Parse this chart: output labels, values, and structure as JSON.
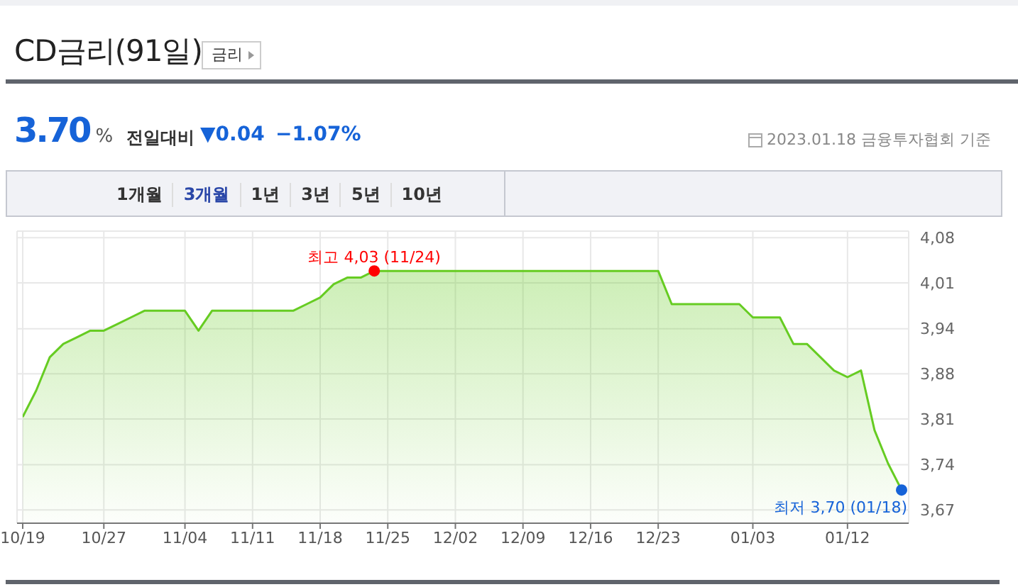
{
  "chart_data": {
    "type": "area",
    "title": "CD금리(91일)",
    "subtitle": "3.70%",
    "categories": [
      "10/19",
      null,
      null,
      null,
      null,
      null,
      "10/27",
      null,
      null,
      null,
      null,
      null,
      "11/04",
      null,
      null,
      null,
      null,
      "11/11",
      null,
      null,
      null,
      null,
      "11/18",
      null,
      null,
      null,
      null,
      "11/25",
      null,
      null,
      null,
      null,
      "12/02",
      null,
      null,
      null,
      null,
      "12/09",
      null,
      null,
      null,
      null,
      "12/16",
      null,
      null,
      null,
      null,
      "12/23",
      null,
      null,
      null,
      null,
      null,
      null,
      "01/03",
      null,
      null,
      null,
      null,
      null,
      null,
      "01/12",
      null,
      null,
      null,
      null
    ],
    "series": [
      {
        "color": "#66cc22",
        "values": [
          3.81,
          3.85,
          3.9,
          3.92,
          3.93,
          3.94,
          3.94,
          3.95,
          3.96,
          3.97,
          3.97,
          3.97,
          3.97,
          3.94,
          3.97,
          3.97,
          3.97,
          3.97,
          3.97,
          3.97,
          3.97,
          3.98,
          3.99,
          4.01,
          4.02,
          4.02,
          4.03,
          4.03,
          4.03,
          4.03,
          4.03,
          4.03,
          4.03,
          4.03,
          4.03,
          4.03,
          4.03,
          4.03,
          4.03,
          4.03,
          4.03,
          4.03,
          4.03,
          4.03,
          4.03,
          4.03,
          4.03,
          4.03,
          3.98,
          3.98,
          3.98,
          3.98,
          3.98,
          3.98,
          3.96,
          3.96,
          3.96,
          3.92,
          3.92,
          3.9,
          3.88,
          3.87,
          3.88,
          3.79,
          3.74,
          3.7
        ]
      }
    ],
    "ylim": [
      3.65,
      4.09
    ],
    "yticks": [
      {
        "value": 3.67,
        "label": "3,67"
      },
      {
        "value": 3.738,
        "label": "3,74"
      },
      {
        "value": 3.807,
        "label": "3,81"
      },
      {
        "value": 3.875,
        "label": "3,88"
      },
      {
        "value": 3.943,
        "label": "3,94"
      },
      {
        "value": 4.012,
        "label": "4,01"
      },
      {
        "value": 4.08,
        "label": "4,08"
      }
    ],
    "grid": true,
    "legend": false,
    "marker": "none",
    "line_style": "solid",
    "annotations": [
      "금리",
      "전일대비",
      "▼0.04",
      "−1.07%",
      "2023.01.18 금융투자협회 기준",
      "1개월",
      "3개월",
      "1년",
      "3년",
      "5년",
      "10년",
      "최고 4,03 (11/24)",
      "최저 3,70 (01/18)"
    ]
  }
}
